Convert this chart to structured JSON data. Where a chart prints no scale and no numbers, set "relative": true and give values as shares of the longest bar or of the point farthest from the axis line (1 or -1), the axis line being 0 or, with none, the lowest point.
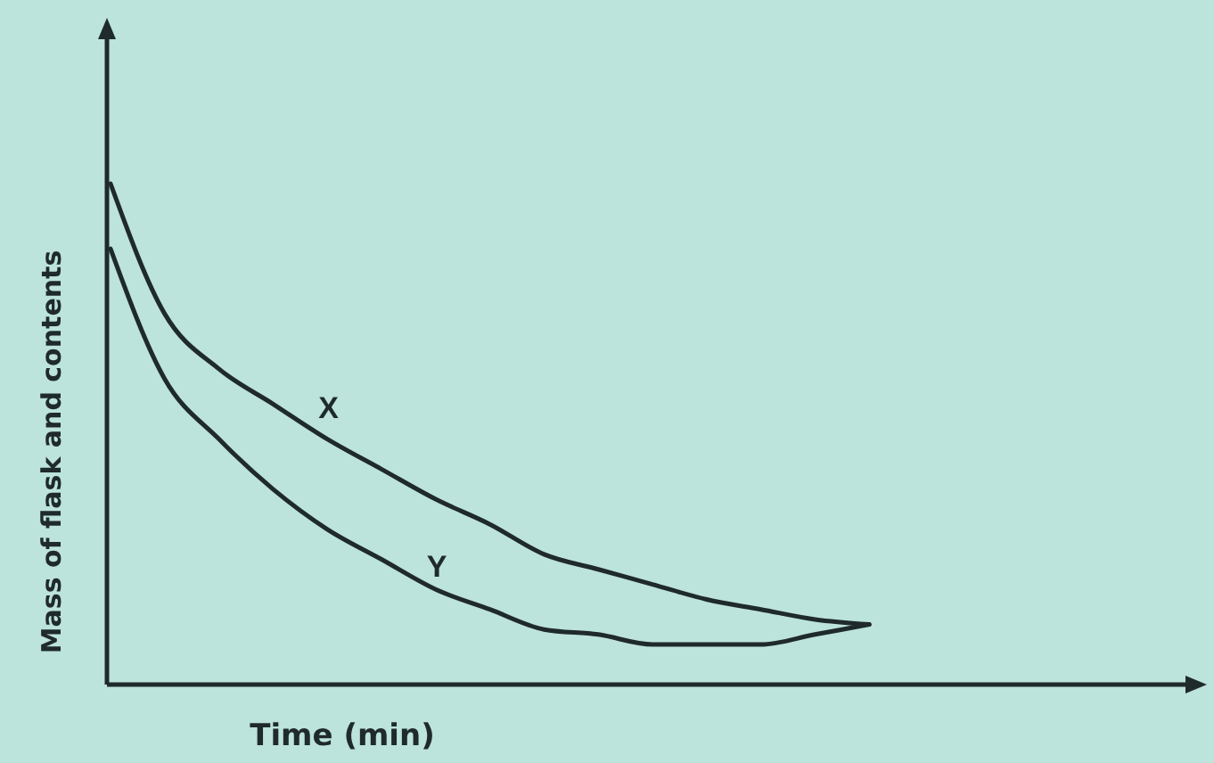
{
  "chart_data": {
    "type": "line",
    "relative": true,
    "xlabel": "Time (min)",
    "ylabel": "Mass of flask and contents",
    "categories": [
      null,
      null,
      null,
      null,
      null,
      null,
      null,
      null,
      null,
      null,
      null,
      null,
      null,
      null,
      null,
      null,
      null,
      null,
      null,
      null,
      null
    ],
    "series": [
      {
        "name": "X",
        "color": "#1f2a2a",
        "values": [
          1.0,
          0.74,
          0.63,
          0.56,
          0.49,
          0.43,
          0.37,
          0.32,
          0.26,
          0.23,
          0.2,
          0.17,
          0.15,
          0.13,
          0.12,
          null,
          null,
          null,
          null,
          null,
          null
        ]
      },
      {
        "name": "Y",
        "color": "#1f2a2a",
        "values": [
          0.87,
          0.61,
          0.49,
          0.39,
          0.31,
          0.25,
          0.19,
          0.15,
          0.11,
          0.1,
          0.08,
          0.08,
          0.08,
          0.1,
          0.12,
          null,
          null,
          null,
          null,
          null,
          null
        ]
      }
    ]
  }
}
